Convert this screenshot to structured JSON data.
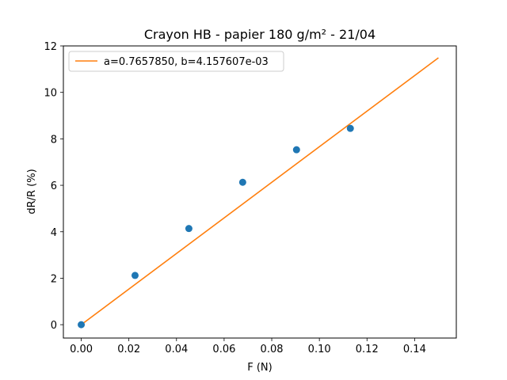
{
  "chart_data": {
    "type": "scatter",
    "title": "Crayon HB - papier 180 g/m² - 21/04",
    "xlabel": "F (N)",
    "ylabel": "dR/R (%)",
    "xlim": [
      -0.0075,
      0.1575
    ],
    "ylim": [
      -0.575,
      12.0
    ],
    "xticks": [
      0.0,
      0.02,
      0.04,
      0.06,
      0.08,
      0.1,
      0.12,
      0.14
    ],
    "xtick_labels": [
      "0.00",
      "0.02",
      "0.04",
      "0.06",
      "0.08",
      "0.10",
      "0.12",
      "0.14"
    ],
    "yticks": [
      0,
      2,
      4,
      6,
      8,
      10,
      12
    ],
    "ytick_labels": [
      "0",
      "2",
      "4",
      "6",
      "8",
      "10",
      "12"
    ],
    "grid": false,
    "legend_position": "top-left",
    "series": [
      {
        "kind": "scatter",
        "color": "#1f77b4",
        "x": [
          0.0,
          0.0226,
          0.0452,
          0.0678,
          0.0904,
          0.113
        ],
        "y": [
          0.0,
          2.12,
          4.14,
          6.13,
          7.53,
          8.45
        ]
      },
      {
        "kind": "line",
        "name": "a=0.7657850, b=4.157607e-03",
        "color": "#ff7f0e",
        "x": [
          0.0,
          0.15
        ],
        "y": [
          0.0,
          11.49
        ]
      }
    ]
  }
}
